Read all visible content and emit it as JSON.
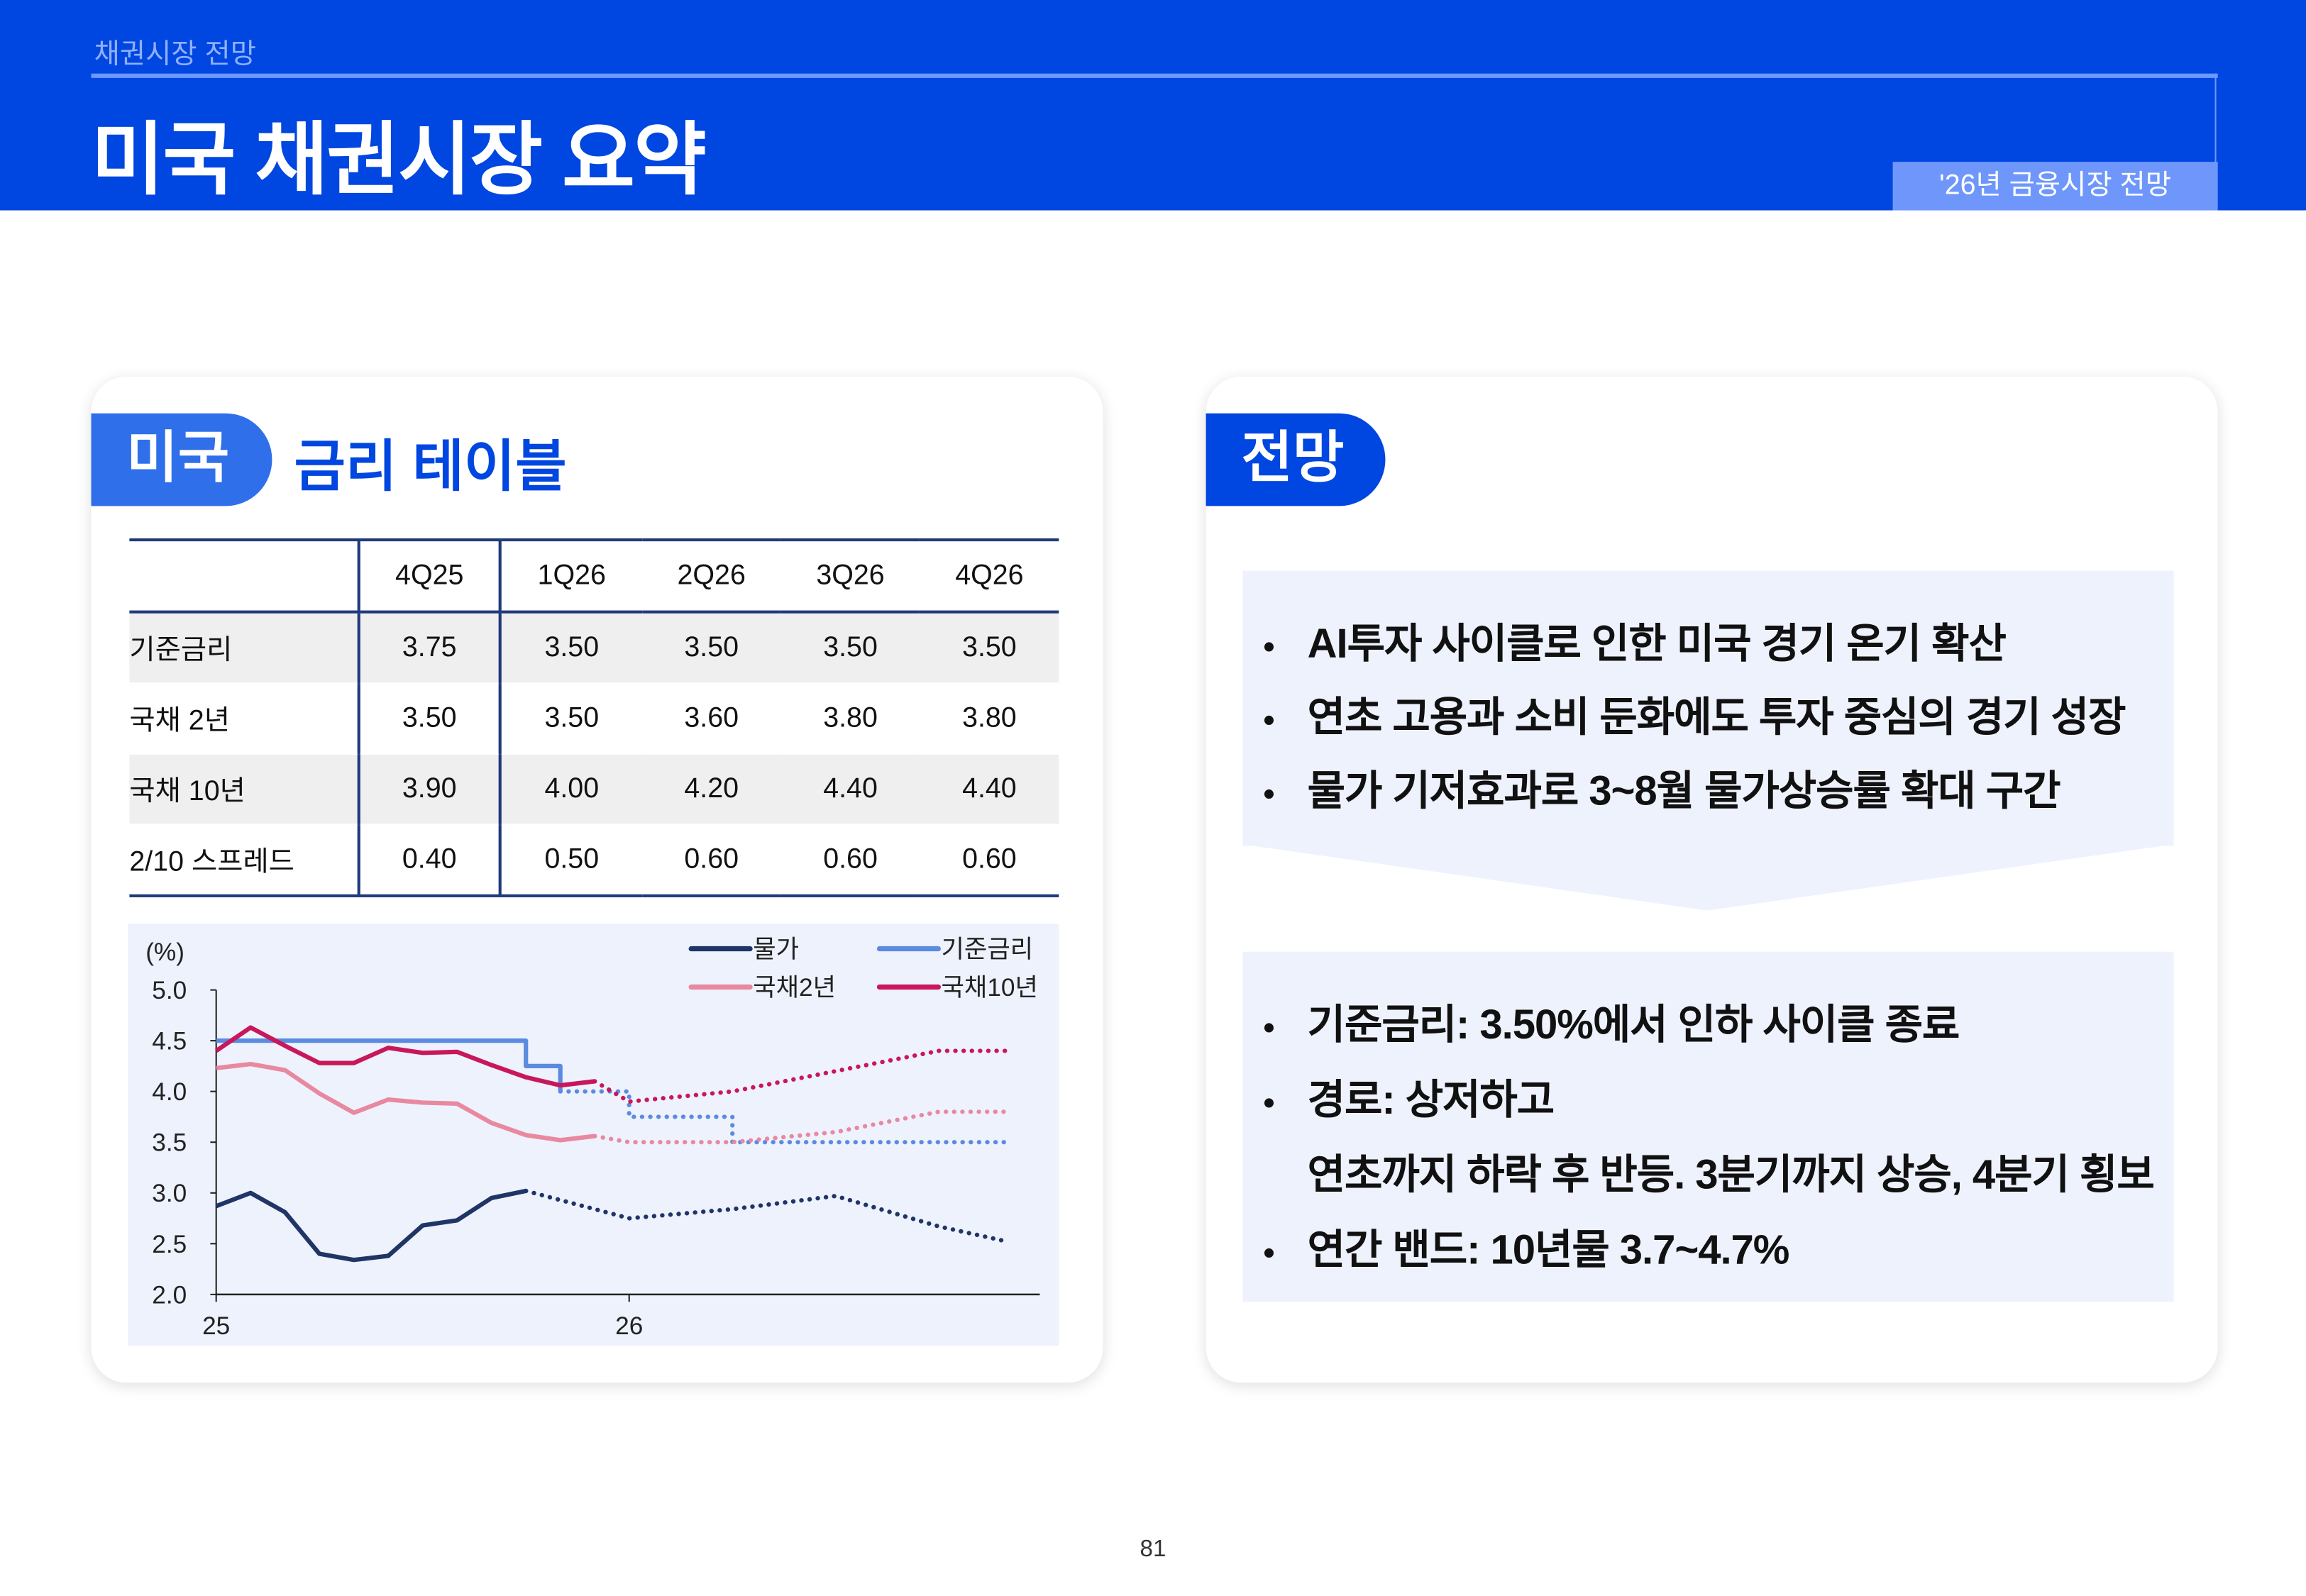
{
  "header": {
    "section": "채권시장 전망",
    "title": "미국 채권시장 요약",
    "tag": "'26년 금융시장 전망",
    "color": "#0046e0"
  },
  "left_card": {
    "pill": "미국",
    "heading": "금리 테이블",
    "table": {
      "columns": [
        "",
        "4Q25",
        "1Q26",
        "2Q26",
        "3Q26",
        "4Q26"
      ],
      "rows": [
        [
          "기준금리",
          "3.75",
          "3.50",
          "3.50",
          "3.50",
          "3.50"
        ],
        [
          "국채 2년",
          "3.50",
          "3.50",
          "3.60",
          "3.80",
          "3.80"
        ],
        [
          "국채 10년",
          "3.90",
          "4.00",
          "4.20",
          "4.40",
          "4.40"
        ],
        [
          "2/10 스프레드",
          "0.40",
          "0.50",
          "0.60",
          "0.60",
          "0.60"
        ]
      ]
    }
  },
  "right_card": {
    "pill": "전망",
    "box1": [
      "AI투자 사이클로 인한 미국 경기 온기 확산",
      "연초 고용과 소비 둔화에도 투자 중심의 경기 성장",
      "물가 기저효과로 3~8월 물가상승률 확대 구간"
    ],
    "box2": [
      {
        "bullet": true,
        "text": "기준금리: 3.50%에서 인하 사이클 종료"
      },
      {
        "bullet": true,
        "text": "경로: 상저하고"
      },
      {
        "bullet": false,
        "text": "연초까지 하락 후 반등. 3분기까지 상승, 4분기 횡보"
      },
      {
        "bullet": true,
        "text": "연간 밴드: 10년물 3.7~4.7%"
      }
    ]
  },
  "page_number": "81",
  "chart_data": {
    "type": "line",
    "ylabel": "(%)",
    "ylim": [
      2.0,
      5.0
    ],
    "yticks": [
      "5.0",
      "4.5",
      "4.0",
      "3.5",
      "3.0",
      "2.5",
      "2.0"
    ],
    "xticks": [
      "25",
      "26"
    ],
    "xlim": [
      "2025-01",
      "2026-12"
    ],
    "grid": false,
    "legend": "top-right",
    "note_style": "solid = actual, dotted = forecast",
    "series": [
      {
        "name": "물가",
        "color": "#1f3566",
        "step": false,
        "actual": [
          [
            "2025-01",
            2.87
          ],
          [
            "2025-02",
            3.0
          ],
          [
            "2025-03",
            2.81
          ],
          [
            "2025-04",
            2.4
          ],
          [
            "2025-05",
            2.34
          ],
          [
            "2025-06",
            2.38
          ],
          [
            "2025-07",
            2.68
          ],
          [
            "2025-08",
            2.73
          ],
          [
            "2025-09",
            2.95
          ],
          [
            "2025-10",
            3.02
          ]
        ],
        "forecast": [
          [
            "2025-10",
            3.02
          ],
          [
            "2026-01",
            2.75
          ],
          [
            "2026-04",
            2.84
          ],
          [
            "2026-07",
            2.97
          ],
          [
            "2026-10",
            2.67
          ],
          [
            "2026-12",
            2.52
          ]
        ]
      },
      {
        "name": "기준금리",
        "color": "#5b8be0",
        "step": true,
        "actual": [
          [
            "2025-01",
            4.5
          ],
          [
            "2025-10",
            4.25
          ],
          [
            "2025-11",
            4.0
          ]
        ],
        "forecast": [
          [
            "2025-11",
            4.0
          ],
          [
            "2026-01",
            3.75
          ],
          [
            "2026-04",
            3.5
          ],
          [
            "2026-12",
            3.5
          ]
        ]
      },
      {
        "name": "국채2년",
        "color": "#e8899f",
        "step": false,
        "actual": [
          [
            "2025-01",
            4.23
          ],
          [
            "2025-02",
            4.27
          ],
          [
            "2025-03",
            4.21
          ],
          [
            "2025-04",
            3.98
          ],
          [
            "2025-05",
            3.79
          ],
          [
            "2025-06",
            3.92
          ],
          [
            "2025-07",
            3.89
          ],
          [
            "2025-08",
            3.88
          ],
          [
            "2025-09",
            3.69
          ],
          [
            "2025-10",
            3.57
          ],
          [
            "2025-11",
            3.52
          ],
          [
            "2025-12",
            3.56
          ]
        ],
        "forecast": [
          [
            "2025-12",
            3.56
          ],
          [
            "2026-01",
            3.5
          ],
          [
            "2026-04",
            3.5
          ],
          [
            "2026-07",
            3.6
          ],
          [
            "2026-10",
            3.8
          ],
          [
            "2026-12",
            3.8
          ]
        ]
      },
      {
        "name": "국채10년",
        "color": "#c8175a",
        "step": false,
        "actual": [
          [
            "2025-01",
            4.4
          ],
          [
            "2025-02",
            4.63
          ],
          [
            "2025-03",
            4.45
          ],
          [
            "2025-04",
            4.28
          ],
          [
            "2025-05",
            4.28
          ],
          [
            "2025-06",
            4.43
          ],
          [
            "2025-07",
            4.38
          ],
          [
            "2025-08",
            4.39
          ],
          [
            "2025-09",
            4.26
          ],
          [
            "2025-10",
            4.14
          ],
          [
            "2025-11",
            4.06
          ],
          [
            "2025-12",
            4.1
          ]
        ],
        "forecast": [
          [
            "2025-12",
            4.1
          ],
          [
            "2026-01",
            3.9
          ],
          [
            "2026-04",
            4.0
          ],
          [
            "2026-07",
            4.2
          ],
          [
            "2026-10",
            4.4
          ],
          [
            "2026-12",
            4.4
          ]
        ]
      }
    ]
  }
}
